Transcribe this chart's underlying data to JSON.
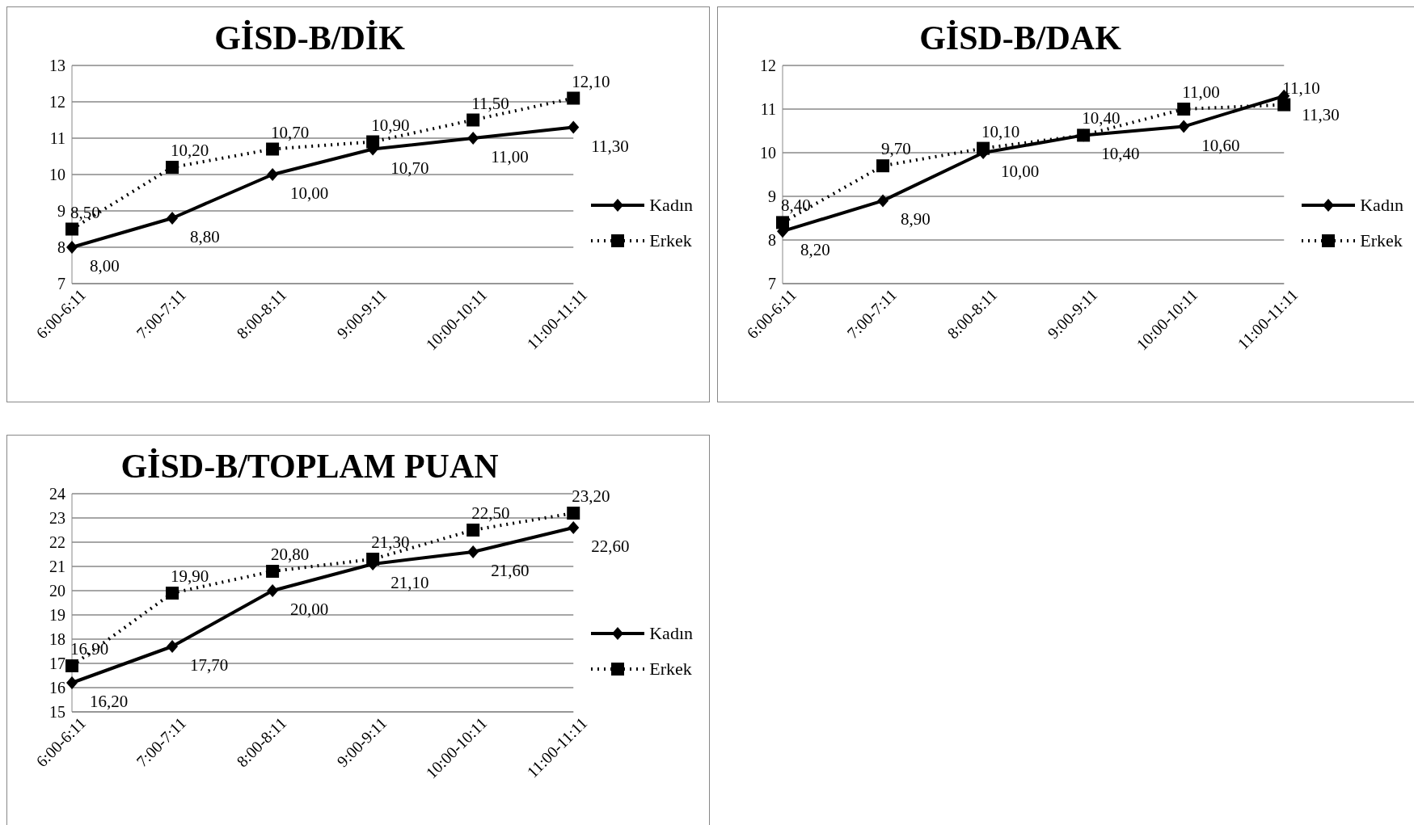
{
  "chart_data": [
    {
      "type": "line",
      "title": "GİSD-B/DİK",
      "categories": [
        "6:00-6:11",
        "7:00-7:11",
        "8:00-8:11",
        "9:00-9:11",
        "10:00-10:11",
        "11:00-11:11"
      ],
      "series": [
        {
          "name": "Kadın",
          "color": "#000000",
          "marker": "diamond",
          "line_style": "solid",
          "values": [
            8.0,
            8.8,
            10.0,
            10.7,
            11.0,
            11.3
          ],
          "value_labels": [
            "8,00",
            "8,80",
            "10,00",
            "10,70",
            "11,00",
            "11,30"
          ]
        },
        {
          "name": "Erkek",
          "color": "#000000",
          "marker": "square",
          "line_style": "dotted",
          "values": [
            8.5,
            10.2,
            10.7,
            10.9,
            11.5,
            12.1
          ],
          "value_labels": [
            "8,50",
            "10,20",
            "10,70",
            "10,90",
            "11,50",
            "12,10"
          ]
        }
      ],
      "ylim": [
        7,
        13
      ],
      "yticks": [
        7,
        8,
        9,
        10,
        11,
        12,
        13
      ],
      "grid": "y",
      "legend": "right"
    },
    {
      "type": "line",
      "title": "GİSD-B/DAK",
      "categories": [
        "6:00-6:11",
        "7:00-7:11",
        "8:00-8:11",
        "9:00-9:11",
        "10:00-10:11",
        "11:00-11:11"
      ],
      "series": [
        {
          "name": "Kadın",
          "color": "#000000",
          "marker": "diamond",
          "line_style": "solid",
          "values": [
            8.2,
            8.9,
            10.0,
            10.4,
            10.6,
            11.3
          ],
          "value_labels": [
            "8,20",
            "8,90",
            "10,00",
            "10,40",
            "10,60",
            "11,30"
          ]
        },
        {
          "name": "Erkek",
          "color": "#000000",
          "marker": "square",
          "line_style": "dotted",
          "values": [
            8.4,
            9.7,
            10.1,
            10.4,
            11.0,
            11.1
          ],
          "value_labels": [
            "8,40",
            "9,70",
            "10,10",
            "10,40",
            "11,00",
            "11,10"
          ]
        }
      ],
      "ylim": [
        7,
        12
      ],
      "yticks": [
        7,
        8,
        9,
        10,
        11,
        12
      ],
      "grid": "y",
      "legend": "right"
    },
    {
      "type": "line",
      "title": "GİSD-B/TOPLAM PUAN",
      "categories": [
        "6:00-6:11",
        "7:00-7:11",
        "8:00-8:11",
        "9:00-9:11",
        "10:00-10:11",
        "11:00-11:11"
      ],
      "series": [
        {
          "name": "Kadın",
          "color": "#000000",
          "marker": "diamond",
          "line_style": "solid",
          "values": [
            16.2,
            17.7,
            20.0,
            21.1,
            21.6,
            22.6
          ],
          "value_labels": [
            "16,20",
            "17,70",
            "20,00",
            "21,10",
            "21,60",
            "22,60"
          ]
        },
        {
          "name": "Erkek",
          "color": "#000000",
          "marker": "square",
          "line_style": "dotted",
          "values": [
            16.9,
            19.9,
            20.8,
            21.3,
            22.5,
            23.2
          ],
          "value_labels": [
            "16,90",
            "19,90",
            "20,80",
            "21,30",
            "22,50",
            "23,20"
          ]
        }
      ],
      "ylim": [
        15,
        24
      ],
      "yticks": [
        15,
        16,
        17,
        18,
        19,
        20,
        21,
        22,
        23,
        24
      ],
      "grid": "y",
      "legend": "right"
    }
  ]
}
